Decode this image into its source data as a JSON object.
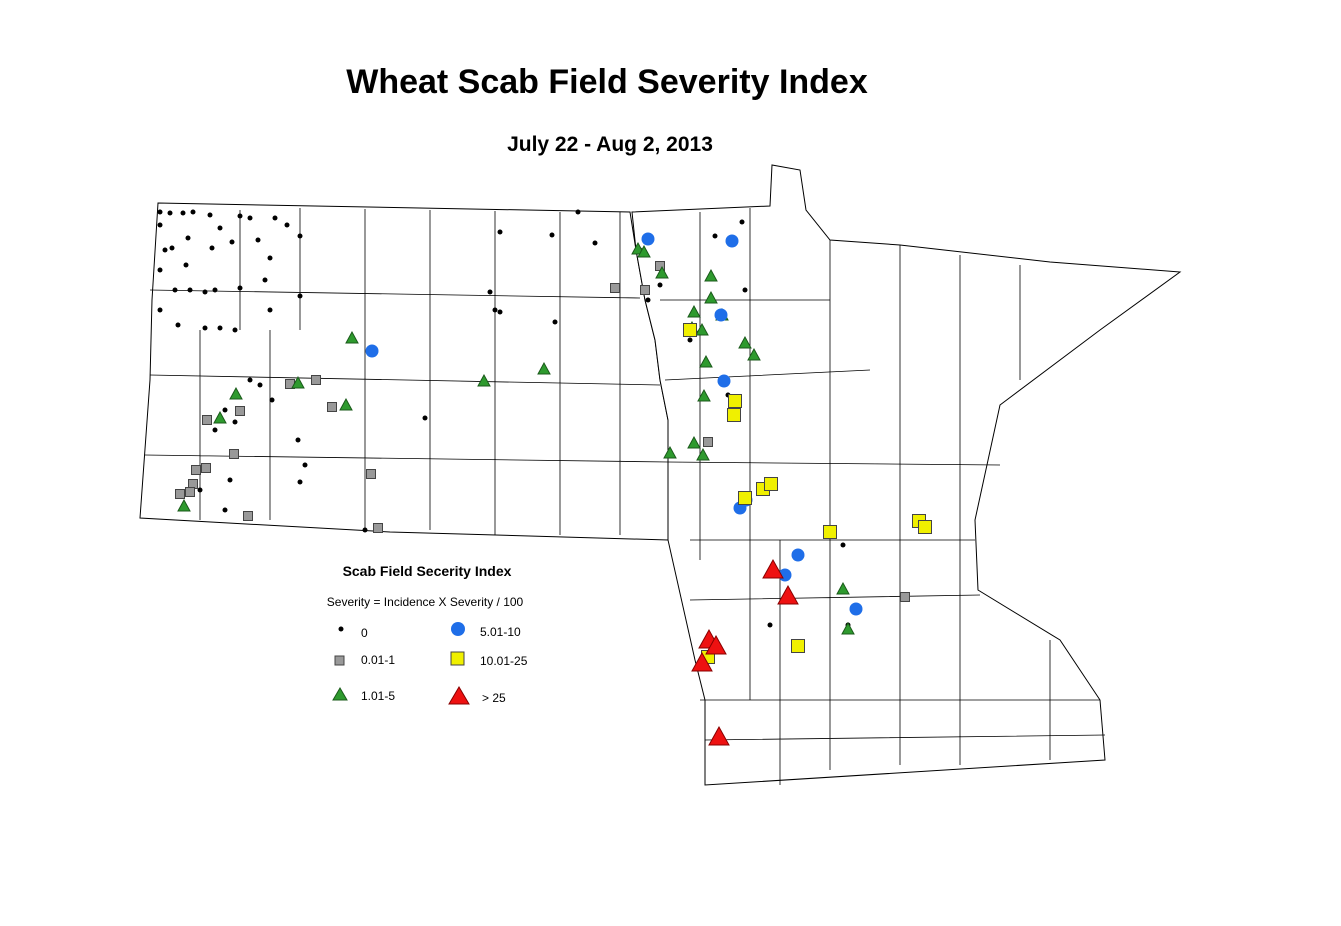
{
  "title": "Wheat Scab Field Severity Index",
  "subtitle": "July 22 - Aug 2, 2013",
  "legend": {
    "title": "Scab Field Secerity Index",
    "formula": "Severity = Incidence X Severity / 100",
    "items": [
      {
        "label": "0"
      },
      {
        "label": "0.01-1"
      },
      {
        "label": "1.01-5"
      },
      {
        "label": "5.01-10"
      },
      {
        "label": "10.01-25"
      },
      {
        "label": "> 25"
      }
    ]
  }
}
